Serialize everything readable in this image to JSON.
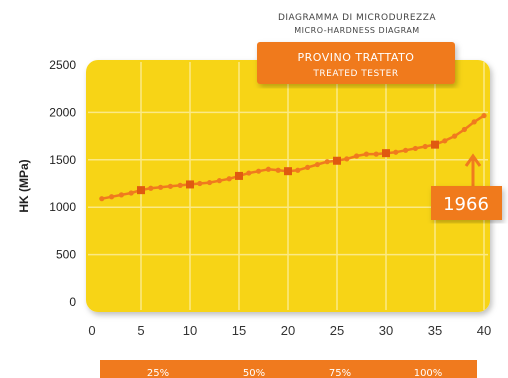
{
  "header": {
    "title_it": "DIAGRAMMA DI MICRODUREZZA",
    "title_en": "MICRO-HARDNESS DIAGRAM"
  },
  "badge": {
    "line1": "PROVINO TRATTATO",
    "line2": "TREATED TESTER"
  },
  "callout": {
    "value": "1966"
  },
  "bottom_bar": {
    "labels": [
      "25%",
      "50%",
      "75%",
      "100%"
    ]
  },
  "colors": {
    "plot_yellow": "#f7d417",
    "orange": "#f07a1e",
    "orange_dark": "#e05a10",
    "grid": "#fbe985"
  },
  "chart_data": {
    "type": "line",
    "ylabel": "HK (MPa)",
    "xlabel": "",
    "xlim": [
      0,
      40
    ],
    "ylim": [
      0,
      2500
    ],
    "xticks": [
      0,
      5,
      10,
      15,
      20,
      25,
      30,
      35,
      40
    ],
    "yticks": [
      0,
      500,
      1000,
      1500,
      2000,
      2500
    ],
    "grid": true,
    "series": [
      {
        "x": [
          1,
          2,
          3,
          4,
          5,
          6,
          7,
          8,
          9,
          10,
          11,
          12,
          13,
          14,
          15,
          16,
          17,
          18,
          19,
          20,
          21,
          22,
          23,
          24,
          25,
          26,
          27,
          28,
          29,
          30,
          31,
          32,
          33,
          34,
          35,
          36,
          37,
          38,
          39,
          40
        ],
        "y": [
          1090,
          1110,
          1130,
          1150,
          1180,
          1200,
          1210,
          1220,
          1230,
          1240,
          1250,
          1260,
          1280,
          1300,
          1330,
          1360,
          1380,
          1400,
          1390,
          1380,
          1390,
          1420,
          1450,
          1480,
          1490,
          1510,
          1540,
          1560,
          1560,
          1570,
          1580,
          1600,
          1620,
          1640,
          1660,
          1700,
          1750,
          1820,
          1900,
          1966
        ]
      }
    ],
    "highlighted_points": [
      5,
      10,
      15,
      20,
      25,
      30,
      35
    ]
  }
}
